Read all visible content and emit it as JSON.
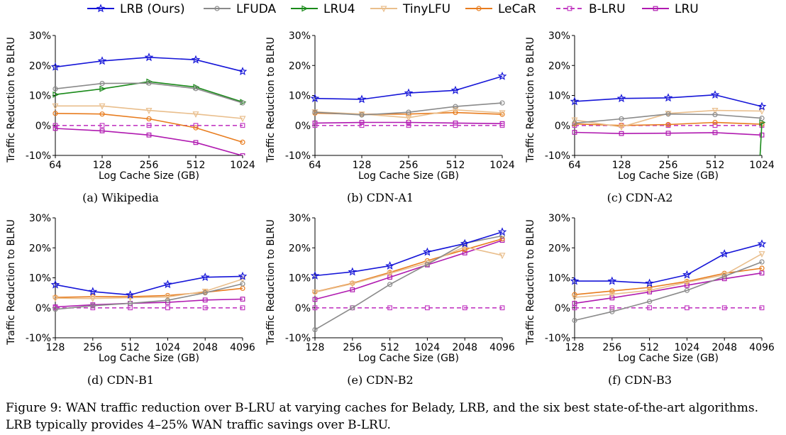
{
  "legend": [
    {
      "name": "LRB (Ours)",
      "color": "#1515d8",
      "marker": "star",
      "dash": false
    },
    {
      "name": "LFUDA",
      "color": "#8a8a8a",
      "marker": "circle",
      "dash": false
    },
    {
      "name": "LRU4",
      "color": "#1a8a1a",
      "marker": "triangle-right",
      "dash": false
    },
    {
      "name": "TinyLFU",
      "color": "#e9be8c",
      "marker": "triangle-down",
      "dash": false
    },
    {
      "name": "LeCaR",
      "color": "#e87c1e",
      "marker": "circle",
      "dash": false
    },
    {
      "name": "B-LRU",
      "color": "#c23bc2",
      "marker": "square",
      "dash": true
    },
    {
      "name": "LRU",
      "color": "#b01ab0",
      "marker": "square",
      "dash": false
    }
  ],
  "caption": "Figure 9: WAN traffic reduction over B-LRU at varying caches for Belady, LRB, and the six best state-of-the-art algorithms. LRB typically provides 4–25% WAN traffic savings over B-LRU.",
  "chart_data": [
    {
      "type": "line",
      "title": "(a) Wikipedia",
      "xlabel": "Log Cache Size (GB)",
      "ylabel": "Traffic Reduction to BLRU",
      "x": [
        "64",
        "128",
        "256",
        "512",
        "1024"
      ],
      "yticks": [
        "30%",
        "20%",
        "10%",
        "0%",
        "-10%"
      ],
      "ylim": [
        -10,
        30
      ],
      "series": [
        {
          "name": "LRB (Ours)",
          "values": [
            19.5,
            21.5,
            22.7,
            21.9,
            18.0
          ]
        },
        {
          "name": "LFUDA",
          "values": [
            12.2,
            14.0,
            14.1,
            12.3,
            7.5
          ]
        },
        {
          "name": "LRU4",
          "values": [
            10.3,
            12.2,
            14.6,
            12.8,
            7.8
          ]
        },
        {
          "name": "TinyLFU",
          "values": [
            6.5,
            6.5,
            5.0,
            3.8,
            2.3
          ]
        },
        {
          "name": "LeCaR",
          "values": [
            4.0,
            3.8,
            2.2,
            -0.8,
            -5.6
          ]
        },
        {
          "name": "B-LRU",
          "values": [
            0,
            0,
            0,
            0,
            0
          ]
        },
        {
          "name": "LRU",
          "values": [
            -1.0,
            -1.8,
            -3.2,
            -5.7,
            -10.1
          ]
        }
      ]
    },
    {
      "type": "line",
      "title": "(b) CDN-A1",
      "xlabel": "Log Cache Size (GB)",
      "ylabel": "Traffic Reduction to BLRU",
      "x": [
        "64",
        "128",
        "256",
        "512",
        "1024"
      ],
      "yticks": [
        "30%",
        "20%",
        "10%",
        "0%",
        "-10%"
      ],
      "ylim": [
        -10,
        30
      ],
      "series": [
        {
          "name": "LRB (Ours)",
          "values": [
            9.0,
            8.7,
            10.8,
            11.7,
            16.4
          ]
        },
        {
          "name": "LFUDA",
          "values": [
            4.4,
            3.5,
            4.4,
            6.3,
            7.5
          ]
        },
        {
          "name": "LRU4",
          "values": [
            null,
            null,
            null,
            null,
            null
          ]
        },
        {
          "name": "TinyLFU",
          "values": [
            4.5,
            3.8,
            2.6,
            5.2,
            4.2
          ]
        },
        {
          "name": "LeCaR",
          "values": [
            4.1,
            3.7,
            3.8,
            4.3,
            3.7
          ]
        },
        {
          "name": "B-LRU",
          "values": [
            0,
            0,
            0,
            0,
            0
          ]
        },
        {
          "name": "LRU",
          "values": [
            0.8,
            1.0,
            1.0,
            0.8,
            0.6
          ]
        }
      ]
    },
    {
      "type": "line",
      "title": "(c) CDN-A2",
      "xlabel": "Log Cache Size (GB)",
      "ylabel": "Traffic Reduction to BLRU",
      "x": [
        "64",
        "128",
        "256",
        "512",
        "1024"
      ],
      "yticks": [
        "30%",
        "20%",
        "10%",
        "0%",
        "-10%"
      ],
      "ylim": [
        -10,
        30
      ],
      "series": [
        {
          "name": "LRB (Ours)",
          "values": [
            8.0,
            9.0,
            9.2,
            10.2,
            6.3
          ]
        },
        {
          "name": "LFUDA",
          "values": [
            0.8,
            2.2,
            3.8,
            3.6,
            2.4
          ]
        },
        {
          "name": "LRU4",
          "values": [
            null,
            null,
            null,
            null,
            1.0
          ],
          "drop": -10
        },
        {
          "name": "TinyLFU",
          "values": [
            1.8,
            -0.5,
            4.0,
            5.0,
            4.8
          ]
        },
        {
          "name": "LeCaR",
          "values": [
            0.5,
            0.0,
            0.3,
            1.0,
            0.4
          ]
        },
        {
          "name": "B-LRU",
          "values": [
            0,
            0,
            0,
            0,
            0
          ]
        },
        {
          "name": "LRU",
          "values": [
            -2.3,
            -2.7,
            -2.6,
            -2.4,
            -3.2
          ]
        }
      ]
    },
    {
      "type": "line",
      "title": "(d) CDN-B1",
      "xlabel": "Log Cache Size (GB)",
      "ylabel": "Traffic Reduction to BLRU",
      "x": [
        "128",
        "256",
        "512",
        "1024",
        "2048",
        "4096"
      ],
      "yticks": [
        "30%",
        "20%",
        "10%",
        "0%",
        "-10%"
      ],
      "ylim": [
        -10,
        30
      ],
      "series": [
        {
          "name": "LRB (Ours)",
          "values": [
            7.7,
            5.4,
            4.3,
            7.8,
            10.2,
            10.5
          ]
        },
        {
          "name": "LFUDA",
          "values": [
            -0.5,
            0.7,
            1.5,
            2.5,
            5.0,
            8.0
          ]
        },
        {
          "name": "LRU4",
          "values": [
            null,
            null,
            null,
            null,
            null,
            null
          ]
        },
        {
          "name": "TinyLFU",
          "values": [
            3.2,
            3.1,
            3.4,
            3.6,
            5.5,
            9.6
          ]
        },
        {
          "name": "LeCaR",
          "values": [
            3.5,
            3.7,
            3.7,
            4.1,
            5.2,
            6.5
          ]
        },
        {
          "name": "B-LRU",
          "values": [
            0,
            0,
            0,
            0,
            0,
            0
          ]
        },
        {
          "name": "LRU",
          "values": [
            0.3,
            1.0,
            1.5,
            1.8,
            2.6,
            2.9
          ]
        }
      ]
    },
    {
      "type": "line",
      "title": "(e) CDN-B2",
      "xlabel": "Log Cache Size (GB)",
      "ylabel": "Traffic Reduction to BLRU",
      "x": [
        "128",
        "256",
        "512",
        "1024",
        "2048",
        "4096"
      ],
      "yticks": [
        "30%",
        "20%",
        "10%",
        "0%",
        "-10%"
      ],
      "ylim": [
        -10,
        30
      ],
      "series": [
        {
          "name": "LRB (Ours)",
          "values": [
            10.7,
            12.0,
            14.0,
            18.6,
            21.4,
            25.3
          ]
        },
        {
          "name": "LFUDA",
          "values": [
            -7.3,
            0.0,
            7.8,
            14.5,
            21.5,
            24.0
          ]
        },
        {
          "name": "LRU4",
          "values": [
            null,
            null,
            null,
            null,
            null,
            null
          ]
        },
        {
          "name": "TinyLFU",
          "values": [
            5.2,
            8.0,
            11.5,
            15.0,
            20.3,
            17.5
          ]
        },
        {
          "name": "LeCaR",
          "values": [
            5.3,
            8.2,
            11.8,
            15.7,
            19.4,
            23.0
          ]
        },
        {
          "name": "B-LRU",
          "values": [
            0,
            0,
            0,
            0,
            0,
            0
          ]
        },
        {
          "name": "LRU",
          "values": [
            2.8,
            6.0,
            10.2,
            14.3,
            18.3,
            22.5
          ]
        }
      ]
    },
    {
      "type": "line",
      "title": "(f) CDN-B3",
      "xlabel": "Log Cache Size (GB)",
      "ylabel": "Traffic Reduction to BLRU",
      "x": [
        "128",
        "256",
        "512",
        "1024",
        "2048",
        "4096"
      ],
      "yticks": [
        "30%",
        "20%",
        "10%",
        "0%",
        "-10%"
      ],
      "ylim": [
        -10,
        30
      ],
      "series": [
        {
          "name": "LRB (Ours)",
          "values": [
            8.9,
            8.9,
            8.2,
            11.0,
            18.0,
            21.3
          ]
        },
        {
          "name": "LFUDA",
          "values": [
            -4.2,
            -1.3,
            2.1,
            5.8,
            10.5,
            15.3
          ]
        },
        {
          "name": "LRU4",
          "values": [
            null,
            null,
            null,
            null,
            null,
            null
          ]
        },
        {
          "name": "TinyLFU",
          "values": [
            3.5,
            4.5,
            5.8,
            8.5,
            11.0,
            18.0
          ]
        },
        {
          "name": "LeCaR",
          "values": [
            4.4,
            5.6,
            6.8,
            8.8,
            11.5,
            13.2
          ]
        },
        {
          "name": "B-LRU",
          "values": [
            0,
            0,
            0,
            0,
            0,
            0
          ]
        },
        {
          "name": "LRU",
          "values": [
            1.5,
            3.3,
            5.3,
            7.5,
            9.7,
            11.6
          ]
        }
      ]
    }
  ]
}
